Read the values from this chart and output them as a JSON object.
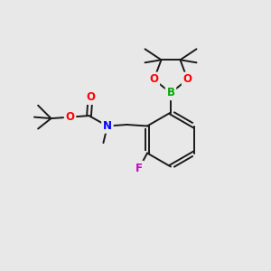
{
  "background_color": "#e8e8e8",
  "bond_color": "#1a1a1a",
  "atom_colors": {
    "O": "#ff0000",
    "N": "#0000ff",
    "B": "#00aa00",
    "F": "#cc00cc",
    "C": "#1a1a1a"
  },
  "figsize": [
    3.0,
    3.0
  ],
  "dpi": 100,
  "xlim": [
    0,
    10
  ],
  "ylim": [
    0,
    10
  ]
}
